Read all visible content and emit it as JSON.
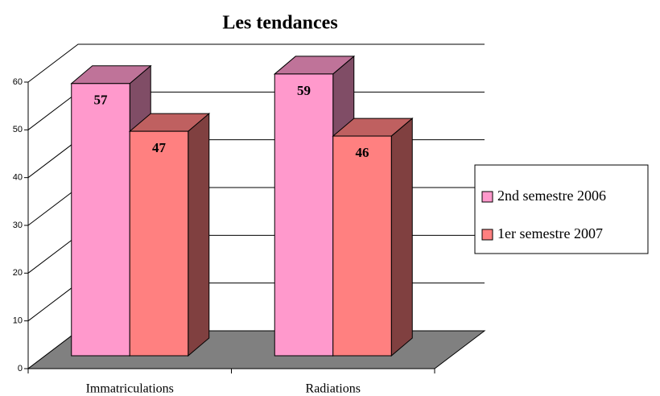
{
  "chart_data": {
    "type": "bar3d",
    "title": "Les tendances",
    "categories": [
      "Immatriculations",
      "Radiations"
    ],
    "series": [
      {
        "name": "2nd semestre 2006",
        "color": "#ff99cc",
        "values": [
          57,
          59
        ]
      },
      {
        "name": "1er semestre 2007",
        "color": "#ff8080",
        "values": [
          47,
          46
        ]
      }
    ],
    "ylim": [
      0,
      60
    ],
    "yticks": [
      0,
      10,
      20,
      30,
      40,
      50,
      60
    ],
    "grid": true,
    "legend": "right"
  }
}
